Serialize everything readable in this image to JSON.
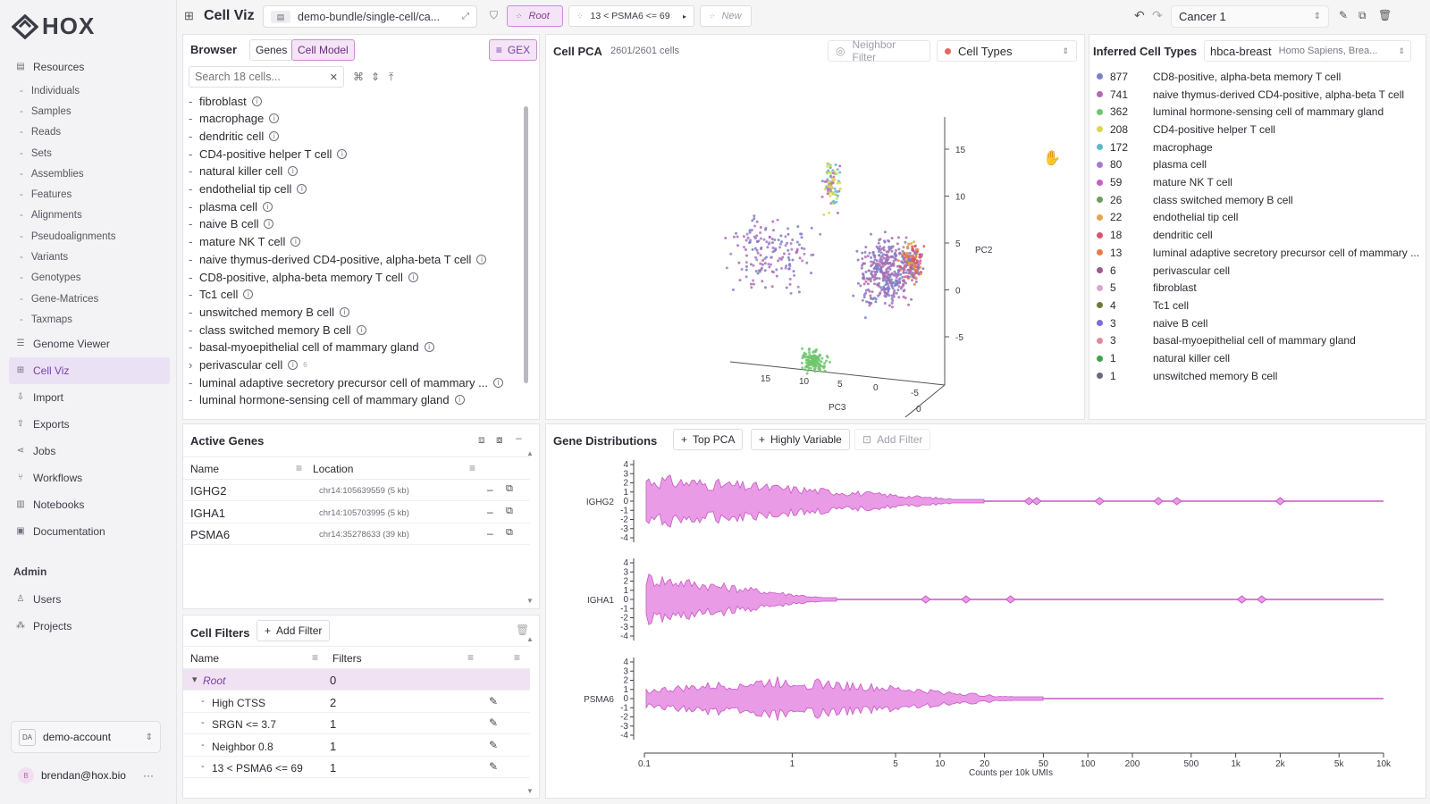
{
  "brand": {
    "name": "HOX"
  },
  "sidebar": {
    "sections": [
      {
        "label": "Resources",
        "icon": "file-icon",
        "children": [
          "Individuals",
          "Samples",
          "Reads",
          "Sets",
          "Assemblies",
          "Features",
          "Alignments",
          "Pseudoalignments",
          "Variants",
          "Genotypes",
          "Gene-Matrices",
          "Taxmaps"
        ]
      },
      {
        "label": "Genome Viewer",
        "icon": "list-icon"
      },
      {
        "label": "Cell Viz",
        "icon": "grid-icon",
        "active": true
      },
      {
        "label": "Import",
        "icon": "import-icon"
      },
      {
        "label": "Exports",
        "icon": "export-icon"
      },
      {
        "label": "Jobs",
        "icon": "share-icon"
      },
      {
        "label": "Workflows",
        "icon": "branch-icon"
      },
      {
        "label": "Notebooks",
        "icon": "book-icon"
      },
      {
        "label": "Documentation",
        "icon": "doc-icon"
      }
    ],
    "admin": {
      "title": "Admin",
      "items": [
        "Users",
        "Projects"
      ]
    },
    "account": {
      "badge": "DA",
      "name": "demo-account"
    },
    "user": {
      "initial": "B",
      "email": "brendan@hox.bio",
      "menu": "···"
    }
  },
  "topbar": {
    "title": "Cell Viz",
    "bundle": "demo-bundle/single-cell/ca...",
    "root_chip": "Root",
    "filter_chip": "13 < PSMA6 <= 69",
    "new_chip": "New",
    "dataset": "Cancer 1"
  },
  "browser": {
    "title": "Browser",
    "tabs": [
      "Genes",
      "Cell Model"
    ],
    "active_tab": "Cell Model",
    "gex_label": "GEX",
    "search_placeholder": "Search 18 cells...",
    "items": [
      {
        "label": "fibroblast"
      },
      {
        "label": "macrophage"
      },
      {
        "label": "dendritic cell"
      },
      {
        "label": "CD4-positive helper T cell"
      },
      {
        "label": "natural killer cell"
      },
      {
        "label": "endothelial tip cell"
      },
      {
        "label": "plasma cell"
      },
      {
        "label": "naive B cell"
      },
      {
        "label": "mature NK T cell"
      },
      {
        "label": "naive thymus-derived CD4-positive, alpha-beta T cell"
      },
      {
        "label": "CD8-positive, alpha-beta memory T cell"
      },
      {
        "label": "Tc1 cell"
      },
      {
        "label": "unswitched memory B cell"
      },
      {
        "label": "class switched memory B cell"
      },
      {
        "label": "basal-myoepithelial cell of mammary gland"
      },
      {
        "label": "perivascular cell",
        "expandable": true,
        "count": "6"
      },
      {
        "label": "luminal adaptive secretory precursor cell of mammary ..."
      },
      {
        "label": "luminal hormone-sensing cell of mammary gland"
      }
    ]
  },
  "active_genes": {
    "title": "Active Genes",
    "columns": [
      "Name",
      "Location"
    ],
    "rows": [
      {
        "name": "IGHG2",
        "location": "chr14:105639559 (5 kb)"
      },
      {
        "name": "IGHA1",
        "location": "chr14:105703995 (5 kb)"
      },
      {
        "name": "PSMA6",
        "location": "chr14:35278633 (39 kb)"
      }
    ]
  },
  "cell_filters": {
    "title": "Cell Filters",
    "add_label": "Add Filter",
    "columns": [
      "Name",
      "Filters"
    ],
    "rows": [
      {
        "name": "Root",
        "count": "0",
        "root": true
      },
      {
        "name": "High CTSS",
        "count": "2"
      },
      {
        "name": "SRGN <= 3.7",
        "count": "1"
      },
      {
        "name": "Neighbor 0.8",
        "count": "1"
      },
      {
        "name": "13 < PSMA6 <= 69",
        "count": "1"
      }
    ]
  },
  "pca": {
    "title": "Cell PCA",
    "count": "2601/2601 cells",
    "neighbor_label": "Neighbor Filter",
    "color_by": "Cell Types",
    "axes": {
      "pc2": "PC2",
      "pc3": "PC3",
      "pc2_ticks": [
        "15",
        "10",
        "5",
        "0",
        "-5"
      ],
      "pc3_ticks": [
        "15",
        "10",
        "5"
      ],
      "pc1_ticks": [
        "0",
        "-5",
        "0",
        "10"
      ]
    }
  },
  "inferred": {
    "title": "Inferred Cell Types",
    "reference": "hbca-breast",
    "species": "Homo Sapiens, Brea...",
    "rows": [
      {
        "count": "877",
        "label": "CD8-positive, alpha-beta memory T cell",
        "color": "#7b7fc4"
      },
      {
        "count": "741",
        "label": "naive thymus-derived CD4-positive, alpha-beta T cell",
        "color": "#b06ab3"
      },
      {
        "count": "362",
        "label": "luminal hormone-sensing cell of mammary gland",
        "color": "#6fc66d"
      },
      {
        "count": "208",
        "label": "CD4-positive helper T cell",
        "color": "#d9d84a"
      },
      {
        "count": "172",
        "label": "macrophage",
        "color": "#5fb8c9"
      },
      {
        "count": "80",
        "label": "plasma cell",
        "color": "#a57bd0"
      },
      {
        "count": "59",
        "label": "mature NK T cell",
        "color": "#c760c2"
      },
      {
        "count": "26",
        "label": "class switched memory B cell",
        "color": "#6d9e5f"
      },
      {
        "count": "22",
        "label": "endothelial tip cell",
        "color": "#e2a64b"
      },
      {
        "count": "18",
        "label": "dendritic cell",
        "color": "#d9536f"
      },
      {
        "count": "13",
        "label": "luminal adaptive secretory precursor cell of mammary ...",
        "color": "#e27d48"
      },
      {
        "count": "6",
        "label": "perivascular cell",
        "color": "#9a5a8f"
      },
      {
        "count": "5",
        "label": "fibroblast",
        "color": "#d9a5d6"
      },
      {
        "count": "4",
        "label": "Tc1 cell",
        "color": "#6f7a3a"
      },
      {
        "count": "3",
        "label": "naive B cell",
        "color": "#7d6fd0"
      },
      {
        "count": "3",
        "label": "basal-myoepithelial cell of mammary gland",
        "color": "#e2889a"
      },
      {
        "count": "1",
        "label": "natural killer cell",
        "color": "#3fa34d"
      },
      {
        "count": "1",
        "label": "unswitched memory B cell",
        "color": "#6b6b7a"
      }
    ]
  },
  "gene_dist": {
    "title": "Gene Distributions",
    "top_pca": "Top PCA",
    "highly_variable": "Highly Variable",
    "add_filter": "Add Filter",
    "xlabel": "Counts per 10k UMIs",
    "genes": [
      "IGHG2",
      "IGHA1",
      "PSMA6"
    ],
    "x_ticks": [
      "0.1",
      "1",
      "5",
      "10",
      "20",
      "50",
      "100",
      "200",
      "500",
      "1k",
      "2k",
      "5k",
      "10k"
    ],
    "y_ticks": [
      "4",
      "3",
      "2",
      "1",
      "0",
      "-1",
      "-2",
      "-3",
      "-4"
    ]
  },
  "chart_data": {
    "type": "violin",
    "xlabel": "Counts per 10k UMIs",
    "x_scale": "log",
    "xlim": [
      0.1,
      10000
    ],
    "series": [
      {
        "name": "IGHG2",
        "range": [
          0.1,
          4000
        ]
      },
      {
        "name": "IGHA1",
        "range": [
          0.1,
          2000
        ]
      },
      {
        "name": "PSMA6",
        "range": [
          0.1,
          60
        ]
      }
    ]
  }
}
